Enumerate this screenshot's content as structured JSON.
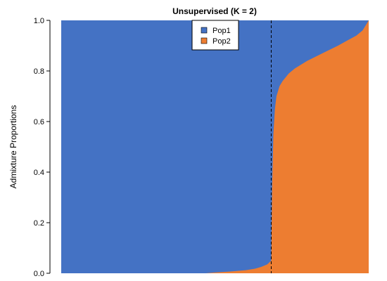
{
  "chart_data": {
    "type": "area",
    "title": "Unsupervised (K = 2)",
    "xlabel": "",
    "ylabel": "Admixture Proportions",
    "ylim": [
      0,
      1
    ],
    "yticks": [
      "0.0",
      "0.2",
      "0.4",
      "0.6",
      "0.8",
      "1.0"
    ],
    "grid": false,
    "legend_position": "top-center",
    "divider_x": 0.683,
    "x": [
      0,
      0.47,
      0.5,
      0.55,
      0.6,
      0.63,
      0.65,
      0.67,
      0.683,
      0.686,
      0.69,
      0.695,
      0.7,
      0.71,
      0.72,
      0.74,
      0.76,
      0.8,
      0.85,
      0.9,
      0.93,
      0.96,
      0.98,
      0.99,
      1.0
    ],
    "series": [
      {
        "name": "Pop1",
        "color": "#4472C4",
        "values": [
          1,
          1,
          0.997,
          0.993,
          0.988,
          0.982,
          0.975,
          0.965,
          0.95,
          0.66,
          0.45,
          0.35,
          0.3,
          0.26,
          0.24,
          0.21,
          0.19,
          0.16,
          0.13,
          0.1,
          0.08,
          0.06,
          0.04,
          0.02,
          0
        ]
      },
      {
        "name": "Pop2",
        "color": "#ED7D31",
        "values": [
          0,
          0,
          0.003,
          0.007,
          0.012,
          0.018,
          0.025,
          0.035,
          0.05,
          0.34,
          0.55,
          0.65,
          0.7,
          0.74,
          0.76,
          0.79,
          0.81,
          0.84,
          0.87,
          0.9,
          0.92,
          0.94,
          0.96,
          0.98,
          1
        ]
      }
    ]
  }
}
